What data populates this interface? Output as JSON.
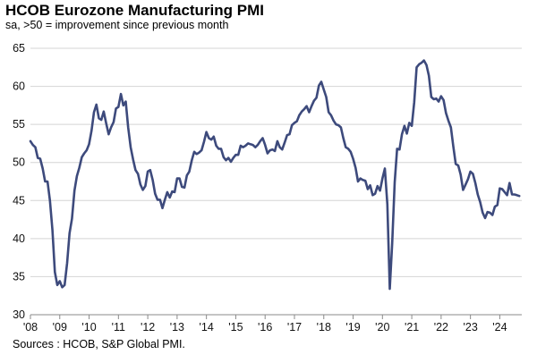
{
  "chart_data": {
    "type": "line",
    "title": "HCOB Eurozone Manufacturing PMI",
    "subtitle": "sa, >50 = improvement  since previous month",
    "source": "Sources : HCOB, S&P Global PMI.",
    "xlabel": "",
    "ylabel": "",
    "xlim": [
      2008.0,
      2024.75
    ],
    "ylim": [
      30,
      65
    ],
    "y_ticks": [
      30,
      35,
      40,
      45,
      50,
      55,
      60,
      65
    ],
    "x_ticks": [
      {
        "value": 2008,
        "label": "'08"
      },
      {
        "value": 2009,
        "label": "'09"
      },
      {
        "value": 2010,
        "label": "'10"
      },
      {
        "value": 2011,
        "label": "'11"
      },
      {
        "value": 2012,
        "label": "'12"
      },
      {
        "value": 2013,
        "label": "'13"
      },
      {
        "value": 2014,
        "label": "'14"
      },
      {
        "value": 2015,
        "label": "'15"
      },
      {
        "value": 2016,
        "label": "'16"
      },
      {
        "value": 2017,
        "label": "'17"
      },
      {
        "value": 2018,
        "label": "'18"
      },
      {
        "value": 2019,
        "label": "'19"
      },
      {
        "value": 2020,
        "label": "'20"
      },
      {
        "value": 2021,
        "label": "'21"
      },
      {
        "value": 2022,
        "label": "'22"
      },
      {
        "value": 2023,
        "label": "'23"
      },
      {
        "value": 2024,
        "label": "'24"
      }
    ],
    "grid": true,
    "series": [
      {
        "name": "HCOB Eurozone Manufacturing PMI",
        "color": "#3d4a7c",
        "start": 2008.0,
        "step": 0.08333,
        "values": [
          52.8,
          52.3,
          52.0,
          50.6,
          50.5,
          49.2,
          47.5,
          47.5,
          45.0,
          41.1,
          35.6,
          33.9,
          34.4,
          33.6,
          33.9,
          36.8,
          40.7,
          42.6,
          46.3,
          48.2,
          49.3,
          50.7,
          51.2,
          51.6,
          52.4,
          54.2,
          56.6,
          57.6,
          55.8,
          55.6,
          56.7,
          55.1,
          53.7,
          54.6,
          55.3,
          57.1,
          57.3,
          59.0,
          57.5,
          58.0,
          54.6,
          52.0,
          50.4,
          49.0,
          48.5,
          47.1,
          46.4,
          46.9,
          48.8,
          49.0,
          47.7,
          45.9,
          45.1,
          45.1,
          44.0,
          45.1,
          46.1,
          45.4,
          46.2,
          46.1,
          47.9,
          47.9,
          46.8,
          46.7,
          48.3,
          48.8,
          50.3,
          51.4,
          51.1,
          51.3,
          51.6,
          52.7,
          54.0,
          53.2,
          53.0,
          53.4,
          52.2,
          51.8,
          51.8,
          50.7,
          50.3,
          50.6,
          50.1,
          50.6,
          51.0,
          51.0,
          52.2,
          52.0,
          52.2,
          52.5,
          52.4,
          52.3,
          52.0,
          52.3,
          52.8,
          53.2,
          52.3,
          51.2,
          51.6,
          51.7,
          51.5,
          52.8,
          52.0,
          51.7,
          52.6,
          53.6,
          53.7,
          54.9,
          55.2,
          55.4,
          56.2,
          56.7,
          57.0,
          57.4,
          56.6,
          57.4,
          58.1,
          58.5,
          60.1,
          60.6,
          59.6,
          58.6,
          56.6,
          56.2,
          55.5,
          55.0,
          54.9,
          54.6,
          53.2,
          52.0,
          51.8,
          51.4,
          50.5,
          49.3,
          47.5,
          47.9,
          47.7,
          47.6,
          46.5,
          47.0,
          45.7,
          45.9,
          46.9,
          46.3,
          47.9,
          49.2,
          44.5,
          33.4,
          39.4,
          47.4,
          51.8,
          51.7,
          53.7,
          54.8,
          53.8,
          55.2,
          54.8,
          57.9,
          62.5,
          62.9,
          63.1,
          63.4,
          62.8,
          61.4,
          58.6,
          58.3,
          58.4,
          58.0,
          58.7,
          58.2,
          56.5,
          55.5,
          54.6,
          52.1,
          49.8,
          49.6,
          48.4,
          46.4,
          47.1,
          47.8,
          48.8,
          48.5,
          47.3,
          45.8,
          44.8,
          43.4,
          42.7,
          43.5,
          43.4,
          43.1,
          44.2,
          44.4,
          46.6,
          46.5,
          46.1,
          45.7,
          47.3,
          45.8,
          45.8,
          45.7,
          45.6
        ]
      }
    ]
  }
}
